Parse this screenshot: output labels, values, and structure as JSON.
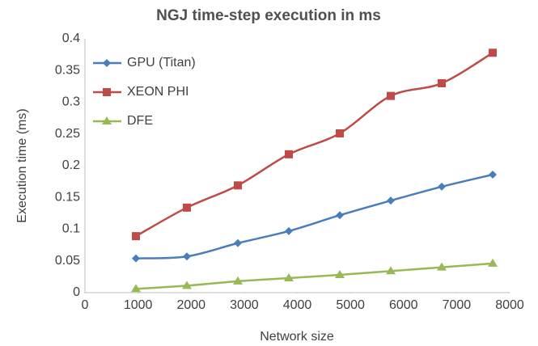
{
  "chart_data": {
    "type": "line",
    "title": "NGJ time-step execution in ms",
    "x_label": "Network size",
    "y_label": "Execution time (ms)",
    "x": [
      960,
      1920,
      2880,
      3840,
      4800,
      5760,
      6720,
      7680
    ],
    "series": [
      {
        "name": "GPU (Titan)",
        "color": "#4a7ebb",
        "marker": "diamond",
        "values": [
          0.054,
          0.057,
          0.078,
          0.097,
          0.122,
          0.145,
          0.167,
          0.186
        ]
      },
      {
        "name": "XEON PHI",
        "color": "#be4b48",
        "marker": "square",
        "values": [
          0.089,
          0.134,
          0.169,
          0.218,
          0.251,
          0.31,
          0.33,
          0.378
        ]
      },
      {
        "name": "DFE",
        "color": "#98b954",
        "marker": "triangle",
        "values": [
          0.006,
          0.011,
          0.018,
          0.023,
          0.028,
          0.034,
          0.04,
          0.046
        ]
      }
    ],
    "xlim": [
      0,
      8000
    ],
    "xticks": [
      0,
      1000,
      2000,
      3000,
      4000,
      5000,
      6000,
      7000,
      8000
    ],
    "ylim": [
      0,
      0.4
    ],
    "yticks": [
      0,
      0.05,
      0.1,
      0.15,
      0.2,
      0.25,
      0.3,
      0.35,
      0.4
    ],
    "grid": false,
    "legend": "top-left"
  }
}
